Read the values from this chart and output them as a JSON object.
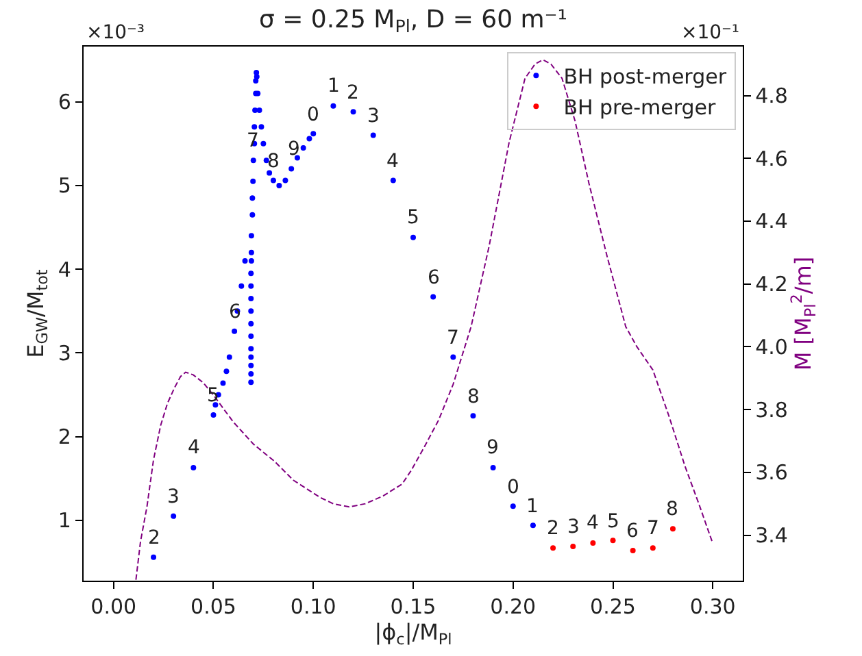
{
  "chart_data": {
    "type": "scatter",
    "title": "σ = 0.25 M$_{Pl}$, D = 60 m⁻¹",
    "xlabel": "|ϕ$_{c}$|/M$_{Pl}$",
    "ylabel": "E$_{GW}$/M$_{tot}$",
    "y2label": "M [M$_{Pl}$$^{2}$/m]",
    "xlim": [
      -0.015,
      0.315
    ],
    "xticks": [
      {
        "value": 0,
        "label": "0.00"
      },
      0.05,
      {
        "value": 0.1,
        "label": "0.10"
      },
      0.15,
      {
        "value": 0.2,
        "label": "0.20"
      },
      0.25,
      {
        "value": 0.3,
        "label": "0.30"
      }
    ],
    "ylim": [
      0.28,
      6.66
    ],
    "yticks": [
      1,
      2,
      3,
      4,
      5,
      6
    ],
    "y2lim": [
      3.255,
      4.956
    ],
    "y2ticks": [
      3.4,
      3.6,
      3.8,
      {
        "value": 4,
        "label": "4.0"
      },
      4.2,
      4.4,
      4.6,
      4.8
    ],
    "grid": false,
    "legend": "top right",
    "marker": "circle",
    "series": [
      {
        "name": "BH post-merger",
        "color": "#0000ff",
        "x": [
          0.02,
          0.03,
          0.04,
          0.05,
          0.051,
          0.0525,
          0.0548,
          0.0565,
          0.058,
          0.0605,
          0.062,
          0.064,
          0.0658,
          0.0688,
          0.0688,
          0.0688,
          0.0688,
          0.0688,
          0.0688,
          0.0688,
          0.0688,
          0.0688,
          0.0688,
          0.0688,
          0.069,
          0.069,
          0.069,
          0.0695,
          0.0695,
          0.0698,
          0.07,
          0.0705,
          0.0705,
          0.0708,
          0.0712,
          0.0712,
          0.0715,
          0.0717,
          0.0722,
          0.073,
          0.074,
          0.075,
          0.0765,
          0.078,
          0.08,
          0.0829,
          0.086,
          0.089,
          0.092,
          0.095,
          0.098,
          0.1,
          0.11,
          0.12,
          0.13,
          0.14,
          0.15,
          0.16,
          0.17,
          0.18,
          0.19,
          0.2,
          0.21
        ],
        "values": [
          0.56,
          1.05,
          1.63,
          2.26,
          2.38,
          2.5,
          2.64,
          2.78,
          2.95,
          3.26,
          3.5,
          3.8,
          4.1,
          2.65,
          2.75,
          2.85,
          2.95,
          3.05,
          3.2,
          3.35,
          3.5,
          3.65,
          3.8,
          3.95,
          4.1,
          4.2,
          4.4,
          4.65,
          4.85,
          5.05,
          5.3,
          5.5,
          5.7,
          5.9,
          6.1,
          6.25,
          6.35,
          6.3,
          6.1,
          5.9,
          5.7,
          5.5,
          5.3,
          5.15,
          5.06,
          5.0,
          5.06,
          5.2,
          5.33,
          5.45,
          5.56,
          5.62,
          5.95,
          5.88,
          5.6,
          5.06,
          4.38,
          3.67,
          2.95,
          2.25,
          1.63,
          1.17,
          0.94
        ]
      },
      {
        "name": "BH pre-merger",
        "color": "#ff0000",
        "x": [
          0.22,
          0.23,
          0.24,
          0.25,
          0.26,
          0.27,
          0.28
        ],
        "values": [
          0.67,
          0.69,
          0.73,
          0.76,
          0.64,
          0.67,
          0.9
        ]
      },
      {
        "type": "line",
        "axis": "y2",
        "color": "#800080",
        "line_style": "dashed",
        "marker": "none",
        "x": [
          0.0112,
          0.0135,
          0.0167,
          0.02,
          0.0236,
          0.027,
          0.0304,
          0.0335,
          0.0361,
          0.04,
          0.045,
          0.05,
          0.06,
          0.07,
          0.0806,
          0.09,
          0.1034,
          0.11,
          0.118,
          0.126,
          0.135,
          0.1445,
          0.149,
          0.1555,
          0.1627,
          0.17,
          0.179,
          0.188,
          0.198,
          0.206,
          0.211,
          0.2149,
          0.219,
          0.2245,
          0.231,
          0.238,
          0.247,
          0.2564,
          0.262,
          0.27,
          0.278,
          0.286,
          0.293,
          0.2998
        ],
        "values": [
          3.258,
          3.38,
          3.49,
          3.64,
          3.75,
          3.82,
          3.868,
          3.905,
          3.919,
          3.91,
          3.885,
          3.846,
          3.76,
          3.69,
          3.635,
          3.575,
          3.52,
          3.5,
          3.49,
          3.5,
          3.525,
          3.563,
          3.606,
          3.68,
          3.766,
          3.88,
          4.064,
          4.32,
          4.65,
          4.855,
          4.9,
          4.914,
          4.9,
          4.855,
          4.72,
          4.52,
          4.29,
          4.064,
          4.0,
          3.926,
          3.78,
          3.621,
          3.5,
          3.377
        ]
      }
    ],
    "annotations": [
      {
        "text": "×10⁻³"
      },
      {
        "text": "×10⁻¹"
      },
      {
        "text": "2",
        "x": 0.02,
        "y": 0.56
      },
      {
        "text": "3",
        "x": 0.03,
        "y": 1.05
      },
      {
        "text": "4",
        "x": 0.04,
        "y": 1.63
      },
      {
        "text": "5",
        "x": 0.05,
        "y": 2.26
      },
      {
        "text": "6",
        "x": 0.0605,
        "y": 3.26
      },
      {
        "text": "7",
        "x": 0.07,
        "y": 5.3
      },
      {
        "text": "8",
        "x": 0.08,
        "y": 5.06
      },
      {
        "text": "9",
        "x": 0.09,
        "y": 5.2
      },
      {
        "text": "0",
        "x": 0.1,
        "y": 5.62
      },
      {
        "text": "1",
        "x": 0.11,
        "y": 5.95
      },
      {
        "text": "2",
        "x": 0.12,
        "y": 5.88
      },
      {
        "text": "3",
        "x": 0.13,
        "y": 5.6
      },
      {
        "text": "4",
        "x": 0.14,
        "y": 5.06
      },
      {
        "text": "5",
        "x": 0.15,
        "y": 4.38
      },
      {
        "text": "6",
        "x": 0.16,
        "y": 3.67
      },
      {
        "text": "7",
        "x": 0.17,
        "y": 2.95
      },
      {
        "text": "8",
        "x": 0.18,
        "y": 2.25
      },
      {
        "text": "9",
        "x": 0.19,
        "y": 1.63
      },
      {
        "text": "0",
        "x": 0.2,
        "y": 1.17
      },
      {
        "text": "1",
        "x": 0.21,
        "y": 0.94
      },
      {
        "text": "2",
        "x": 0.22,
        "y": 0.67
      },
      {
        "text": "3",
        "x": 0.23,
        "y": 0.69
      },
      {
        "text": "4",
        "x": 0.24,
        "y": 0.73
      },
      {
        "text": "5",
        "x": 0.25,
        "y": 0.76
      },
      {
        "text": "6",
        "x": 0.26,
        "y": 0.64
      },
      {
        "text": "7",
        "x": 0.27,
        "y": 0.67
      },
      {
        "text": "8",
        "x": 0.28,
        "y": 0.9
      }
    ]
  }
}
